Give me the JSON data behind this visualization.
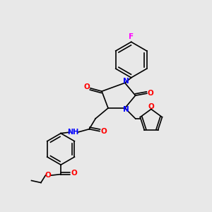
{
  "background_color": "#e8e8e8",
  "bond_color": "#000000",
  "atom_colors": {
    "N": "#0000ff",
    "O": "#ff0000",
    "F": "#ff00ff",
    "C": "#000000",
    "H": "#008080"
  },
  "figsize": [
    3.0,
    3.0
  ],
  "dpi": 100
}
